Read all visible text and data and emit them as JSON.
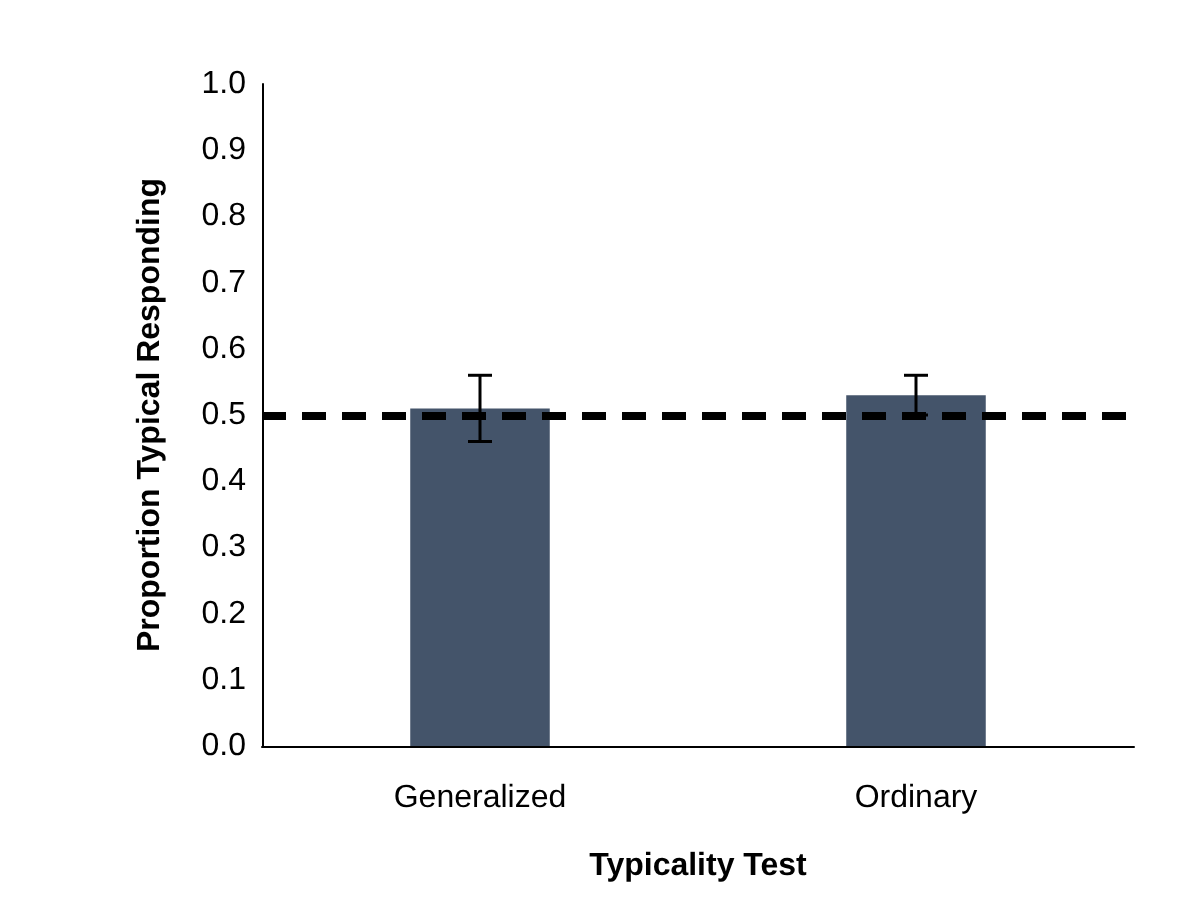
{
  "chart_data": {
    "type": "bar",
    "xlabel": "Typicality Test",
    "ylabel": "Proportion Typical Responding",
    "categories": [
      "Generalized",
      "Ordinary"
    ],
    "values": [
      0.51,
      0.53
    ],
    "errors": [
      [
        0.46,
        0.56
      ],
      [
        0.5,
        0.56
      ]
    ],
    "color": "#44546a",
    "ylim": [
      0,
      1
    ],
    "yticks": [
      {
        "value": 0,
        "label": "0.0"
      },
      0.1,
      0.2,
      0.3,
      0.4,
      0.5,
      0.6,
      0.7,
      0.8,
      0.9,
      {
        "value": 1,
        "label": "1.0"
      }
    ],
    "ref_lines": [
      {
        "axis": "y",
        "value": 0.5,
        "color": "#000000",
        "line_style": "dashed"
      }
    ]
  }
}
